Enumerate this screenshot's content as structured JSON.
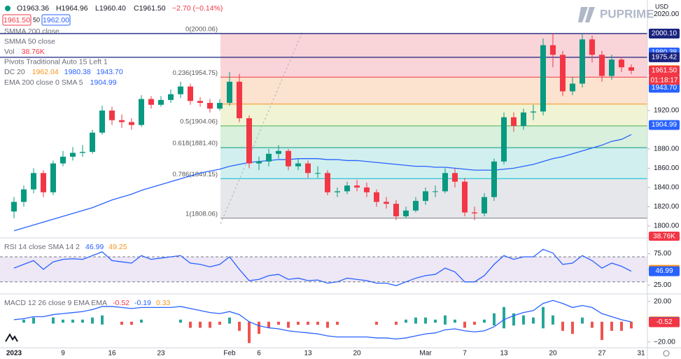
{
  "header": {
    "open": "O1963.36",
    "high": "H1964.96",
    "low": "L1960.40",
    "close": "C1961.50",
    "change": "−2.70 (−0.14%)",
    "sell": "1961.50",
    "spread": "50",
    "buy": "1962.00"
  },
  "logo": "PUPRIME",
  "currency": "USD",
  "volume_tag": "38.76K",
  "timer": "01:18:17",
  "indicators": [
    {
      "name": "SMMA 200 close",
      "values": [],
      "colors": []
    },
    {
      "name": "SMMA 50 close",
      "values": [],
      "colors": []
    },
    {
      "name": "Vol",
      "values": [
        "38.76K"
      ],
      "colors": [
        "#f23645"
      ]
    },
    {
      "name": "Pivots Traditional Auto 15 Left 1",
      "values": [],
      "colors": []
    },
    {
      "name": "DC 20",
      "values": [
        "1962.04",
        "1980.38",
        "1943.70"
      ],
      "colors": [
        "#f7931a",
        "#2962ff",
        "#2962ff"
      ]
    },
    {
      "name": "EMA 200 close 0 SMA 5",
      "values": [
        "1904.99"
      ],
      "colors": [
        "#2962ff"
      ]
    }
  ],
  "chart_data": [
    {
      "type": "candlestick",
      "categories": [
        "2023",
        null,
        null,
        null,
        null,
        "9",
        null,
        null,
        null,
        null,
        "16",
        null,
        null,
        null,
        null,
        "23",
        null,
        null,
        null,
        null,
        null,
        null,
        "Feb",
        null,
        null,
        "6",
        null,
        null,
        null,
        null,
        "13",
        null,
        null,
        null,
        null,
        "20",
        null,
        null,
        null,
        null,
        null,
        null,
        "Mar",
        null,
        null,
        null,
        "7",
        null,
        null,
        null,
        "13",
        null,
        null,
        null,
        null,
        "20",
        null,
        null,
        null,
        null,
        "27",
        null,
        null,
        null,
        "31"
      ],
      "open": [
        1815,
        1825,
        1838,
        1855,
        1835,
        1865,
        1872,
        1876,
        1877,
        1897,
        1920,
        1910,
        1908,
        1905,
        1932,
        1926,
        1931,
        1937,
        1945,
        1930,
        1928,
        1922,
        1928,
        1950,
        1912,
        1865,
        1867,
        1875,
        1878,
        1862,
        1865,
        1855,
        1855,
        1835,
        1836,
        1842,
        1840,
        1835,
        1825,
        1823,
        1810,
        1816,
        1826,
        1836,
        1836,
        1855,
        1846,
        1814,
        1813,
        1830,
        1867,
        1913,
        1904,
        1918,
        1919,
        1988,
        1978,
        1940,
        1948,
        1994,
        1978,
        1956,
        1973,
        1965,
        null
      ],
      "high": [
        1830,
        1842,
        1860,
        1858,
        1868,
        1878,
        1882,
        1884,
        1900,
        1925,
        1924,
        1916,
        1912,
        1936,
        1935,
        1935,
        1942,
        1950,
        1948,
        1934,
        1932,
        1932,
        1960,
        1958,
        1915,
        1872,
        1880,
        1884,
        1880,
        1870,
        1868,
        1862,
        1858,
        1840,
        1846,
        1848,
        1845,
        1838,
        1830,
        1827,
        1820,
        1830,
        1840,
        1842,
        1860,
        1860,
        1850,
        1820,
        1834,
        1870,
        1918,
        1918,
        1922,
        1926,
        1995,
        2000,
        1982,
        1955,
        2000,
        1998,
        1982,
        1978,
        1976,
        1968,
        null
      ],
      "low": [
        1808,
        1820,
        1834,
        1830,
        1832,
        1862,
        1868,
        1872,
        1875,
        1895,
        1905,
        1902,
        1900,
        1903,
        1922,
        1924,
        1928,
        1933,
        1926,
        1924,
        1918,
        1920,
        1925,
        1908,
        1860,
        1858,
        1862,
        1870,
        1858,
        1858,
        1850,
        1850,
        1832,
        1830,
        1833,
        1836,
        1830,
        1820,
        1818,
        1806,
        1808,
        1814,
        1822,
        1830,
        1834,
        1840,
        1810,
        1806,
        1810,
        1826,
        1864,
        1898,
        1900,
        1910,
        1915,
        1965,
        1935,
        1936,
        1944,
        1970,
        1950,
        1952,
        1960,
        1958,
        null
      ],
      "close": [
        1825,
        1838,
        1855,
        1835,
        1865,
        1872,
        1876,
        1877,
        1897,
        1920,
        1910,
        1908,
        1905,
        1932,
        1926,
        1931,
        1937,
        1945,
        1930,
        1928,
        1922,
        1928,
        1950,
        1912,
        1865,
        1867,
        1875,
        1878,
        1862,
        1865,
        1855,
        1855,
        1835,
        1836,
        1842,
        1840,
        1835,
        1825,
        1823,
        1810,
        1816,
        1826,
        1836,
        1836,
        1855,
        1846,
        1814,
        1813,
        1830,
        1867,
        1913,
        1904,
        1918,
        1919,
        1988,
        1978,
        1940,
        1948,
        1994,
        1978,
        1956,
        1973,
        1965,
        1961.5,
        null
      ],
      "up_color": "#089981",
      "down_color": "#f23645",
      "ema": {
        "color": "#2962ff",
        "values": [
          1795,
          1798,
          1801,
          1804,
          1807,
          1810,
          1813,
          1816,
          1819,
          1823,
          1827,
          1830,
          1833,
          1837,
          1840,
          1843,
          1846,
          1849,
          1852,
          1855,
          1857,
          1859,
          1862,
          1864,
          1866,
          1867,
          1868,
          1869,
          1869,
          1870,
          1870,
          1870,
          1869,
          1869,
          1868,
          1868,
          1867,
          1866,
          1865,
          1864,
          1863,
          1862,
          1862,
          1861,
          1861,
          1860,
          1859,
          1858,
          1858,
          1858,
          1859,
          1860,
          1862,
          1864,
          1867,
          1870,
          1872,
          1875,
          1878,
          1881,
          1884,
          1888,
          1890,
          1895,
          null
        ]
      },
      "ylim": [
        1787.5,
        2035
      ],
      "yticks": [
        {
          "value": 2020,
          "label": "2020.00"
        },
        {
          "value": 1920,
          "label": "1920.00"
        },
        {
          "value": 1880,
          "label": "1880.00"
        },
        {
          "value": 1860,
          "label": "1860.00"
        },
        {
          "value": 1840,
          "label": "1840.00"
        },
        {
          "value": 1820,
          "label": "1820.00"
        },
        {
          "value": 1800,
          "label": "1800.00"
        }
      ],
      "fib": [
        {
          "value": 2000.06,
          "label": "0(2000.06)",
          "color": "#f9d4d8",
          "line_color": "#787b86"
        },
        {
          "value": 1954.75,
          "label": "0.236(1954.75)",
          "color": "#fbe3cf",
          "line_color": "#f23645"
        },
        {
          "value": 1926.71,
          "label": null,
          "color": "#f1f3d5",
          "line_color": "#f7931a"
        },
        {
          "value": 1904.06,
          "label": "0.5(1904.06)",
          "color": "#d8f0dc",
          "line_color": "#4caf50"
        },
        {
          "value": 1881.4,
          "label": "0.618(1881.40)",
          "color": "#d1efee",
          "line_color": "#089981"
        },
        {
          "value": 1849.15,
          "label": "0.786(1849.15)",
          "color": "#e6e7ea",
          "line_color": "#00bcd4"
        },
        {
          "value": 1808.06,
          "label": "1(1808.06)",
          "color": null,
          "line_color": "#787b86"
        }
      ],
      "hlines": [
        {
          "value": 2000.1,
          "color": "#1a237e"
        },
        {
          "value": 1975.42,
          "color": "#1a237e"
        }
      ],
      "price_tags": [
        {
          "value": 2000.1,
          "label": "2000.10",
          "color": "#1a237e"
        },
        {
          "value": 1980.38,
          "label": "1980.38",
          "color": "#2962ff"
        },
        {
          "value": 1975.42,
          "label": "1975.42",
          "color": "#1a237e"
        },
        {
          "value": 1962.04,
          "label": "1962.04",
          "color": "#f7931a"
        },
        {
          "value": 1961.5,
          "label": "1961.50",
          "color": "#f23645"
        },
        {
          "value": 1943.7,
          "label": "1943.70",
          "color": "#2962ff"
        },
        {
          "value": 1904.99,
          "label": "1904.99",
          "color": "#2962ff"
        }
      ]
    },
    {
      "type": "line",
      "title": "RSI 14 close SMA 14 2",
      "legend_values": [
        "46.99",
        "49.25"
      ],
      "legend_colors": [
        "#2962ff",
        "#f7931a"
      ],
      "color": "#2962ff",
      "values": [
        52,
        58,
        64,
        50,
        62,
        66,
        67,
        66,
        72,
        78,
        64,
        62,
        60,
        72,
        66,
        68,
        70,
        72,
        60,
        58,
        54,
        58,
        70,
        50,
        32,
        34,
        40,
        42,
        34,
        36,
        32,
        33,
        28,
        30,
        36,
        34,
        32,
        28,
        28,
        24,
        30,
        36,
        40,
        42,
        52,
        46,
        30,
        30,
        40,
        58,
        72,
        66,
        70,
        70,
        82,
        76,
        58,
        60,
        72,
        64,
        52,
        60,
        55,
        47,
        null
      ],
      "ylim": [
        13,
        98
      ],
      "band": [
        30,
        70
      ],
      "yticks": [
        {
          "value": 75,
          "label": "75.00"
        },
        {
          "value": 50,
          "label": "50.00"
        },
        {
          "value": 25,
          "label": "25.00"
        }
      ],
      "price_tags": [
        {
          "value": 49.25,
          "label": "49.25",
          "color": "#f7931a"
        },
        {
          "value": 46.99,
          "label": "46.99",
          "color": "#2962ff"
        }
      ]
    },
    {
      "type": "line",
      "title": "MACD 12 26 close 9 EMA EMA",
      "legend_values": [
        "-0.52",
        "-0.19",
        "0.33"
      ],
      "legend_colors": [
        "#f23645",
        "#2962ff",
        "#f7931a"
      ],
      "color": "#2962ff",
      "values": [
        2,
        3,
        5,
        5,
        7,
        8,
        9,
        10,
        12,
        15,
        15,
        14,
        13,
        14,
        14,
        14,
        14,
        15,
        13,
        11,
        9,
        8,
        10,
        7,
        0,
        -4,
        -6,
        -7,
        -9,
        -10,
        -11,
        -12,
        -14,
        -15,
        -15,
        -15,
        -15,
        -16,
        -16,
        -17,
        -16,
        -14,
        -12,
        -11,
        -8,
        -7,
        -9,
        -10,
        -9,
        -5,
        2,
        6,
        9,
        11,
        18,
        21,
        18,
        14,
        16,
        14,
        8,
        5,
        2,
        -0.19,
        null
      ],
      "ylim": [
        -25,
        26
      ],
      "yticks": [
        {
          "value": 20,
          "label": "20.00"
        },
        {
          "value": -20,
          "label": "−20.00"
        }
      ],
      "price_tags": [
        {
          "value": 0.33,
          "label": "0.33",
          "color": "#f7931a"
        },
        {
          "value": -0.19,
          "label": "-0.19",
          "color": "#2962ff"
        },
        {
          "value": -0.52,
          "label": "-0.52",
          "color": "#f23645"
        }
      ]
    }
  ]
}
